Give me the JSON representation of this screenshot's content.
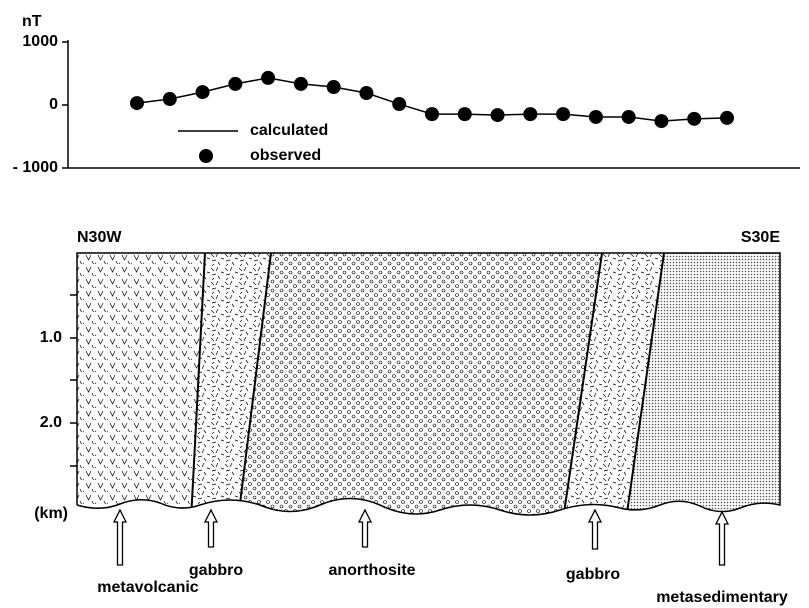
{
  "chart_data": {
    "type": "line",
    "y_label": "nT",
    "categories": [
      null,
      null,
      null,
      null,
      null,
      null,
      null,
      null,
      null,
      null,
      null,
      null,
      null,
      null,
      null,
      null,
      null,
      null,
      null
    ],
    "series": [
      {
        "name": "calculated",
        "color": "#000000",
        "values": [
          30,
          95,
          205,
          335,
          430,
          335,
          285,
          190,
          15,
          -145,
          -145,
          -160,
          -145,
          -145,
          -190,
          -190,
          -255,
          -220,
          -205
        ]
      },
      {
        "name": "observed",
        "color": "#000000",
        "values": [
          30,
          95,
          205,
          335,
          430,
          335,
          285,
          190,
          15,
          -145,
          -145,
          -160,
          -145,
          -145,
          -190,
          -190,
          -255,
          -220,
          -205
        ]
      }
    ],
    "ylim": [
      -1000,
      1000
    ],
    "yticks": [
      {
        "value": -1000,
        "label": "- 1000"
      },
      0,
      1000
    ]
  },
  "cross_section": {
    "left_label": "N30W",
    "right_label": "S30E",
    "depth_labels": [
      "1.0",
      "2.0",
      "(km)"
    ],
    "units": [
      "metavolcanic",
      "gabbro",
      "anorthosite",
      "gabbro",
      "metasedimentary"
    ]
  }
}
